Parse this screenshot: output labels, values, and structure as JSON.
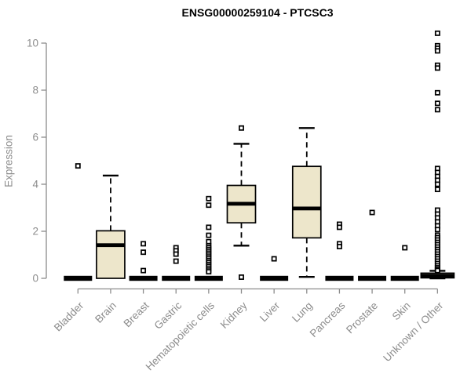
{
  "chart_data": {
    "type": "boxplot",
    "title": "ENSG00000259104 - PTCSC3",
    "ylabel": "Expression",
    "xlabel": "",
    "ylim": [
      0,
      10.5
    ],
    "yticks": [
      0,
      2,
      4,
      6,
      8,
      10
    ],
    "grid": false,
    "legend": "none",
    "axis_color": "#8c8c8c",
    "box_fill_color": "#ede6cb",
    "box_stroke_color": "#000000",
    "categories": [
      "Bladder",
      "Brain",
      "Breast",
      "Gastric",
      "Hematopoietic cells",
      "Kidney",
      "Liver",
      "Lung",
      "Pancreas",
      "Prostate",
      "Skin",
      "Unknown / Other"
    ],
    "boxes": [
      {
        "label": "Bladder",
        "type": "collapsed",
        "median": 0,
        "outliers": [
          4.78
        ]
      },
      {
        "label": "Brain",
        "type": "box",
        "q1": 0.0,
        "median": 1.41,
        "q3": 2.02,
        "whisker_low": 0.0,
        "whisker_high": 4.37,
        "outliers": []
      },
      {
        "label": "Breast",
        "type": "collapsed",
        "median": 0,
        "outliers": [
          1.47,
          1.11,
          0.33
        ]
      },
      {
        "label": "Gastric",
        "type": "collapsed",
        "median": 0,
        "outliers": [
          1.3,
          1.17,
          1.03,
          0.73
        ]
      },
      {
        "label": "Hematopoietic cells",
        "type": "collapsed",
        "median": 0,
        "outliers": [
          3.39,
          3.11,
          2.17,
          1.83,
          1.56,
          1.39,
          1.31,
          1.23,
          1.15,
          1.07,
          0.99,
          0.91,
          0.83,
          0.75,
          0.67,
          0.59,
          0.51,
          0.43,
          0.35,
          0.28
        ]
      },
      {
        "label": "Kidney",
        "type": "box",
        "q1": 2.36,
        "median": 3.17,
        "q3": 3.95,
        "whisker_low": 1.39,
        "whisker_high": 5.72,
        "outliers": [
          6.39,
          0.05
        ]
      },
      {
        "label": "Liver",
        "type": "collapsed",
        "median": 0,
        "outliers": [
          0.83
        ]
      },
      {
        "label": "Lung",
        "type": "box",
        "q1": 1.72,
        "median": 2.97,
        "q3": 4.76,
        "whisker_low": 0.06,
        "whisker_high": 6.39,
        "outliers": []
      },
      {
        "label": "Pancreas",
        "type": "collapsed",
        "median": 0,
        "outliers": [
          2.3,
          2.17,
          1.47,
          1.35
        ]
      },
      {
        "label": "Prostate",
        "type": "collapsed",
        "median": 0,
        "outliers": [
          2.8
        ]
      },
      {
        "label": "Skin",
        "type": "collapsed",
        "median": 0,
        "outliers": [
          1.3
        ]
      },
      {
        "label": "Unknown / Other",
        "type": "box",
        "wide": true,
        "q1": 0.02,
        "median": 0.11,
        "q3": 0.22,
        "whisker_low": 0.0,
        "whisker_high": 0.32,
        "outliers": [
          10.42,
          9.89,
          9.78,
          9.67,
          9.06,
          8.94,
          7.89,
          7.44,
          7.17,
          4.67,
          4.5,
          4.33,
          4.17,
          4.0,
          3.78,
          2.9,
          2.73,
          2.57,
          2.4,
          2.23,
          2.07,
          1.83,
          1.73,
          1.63,
          1.53,
          1.43,
          1.33,
          1.23,
          1.13,
          1.03,
          0.93,
          0.83,
          0.73,
          0.63,
          0.53,
          0.45,
          0.38,
          0.33
        ]
      }
    ]
  }
}
